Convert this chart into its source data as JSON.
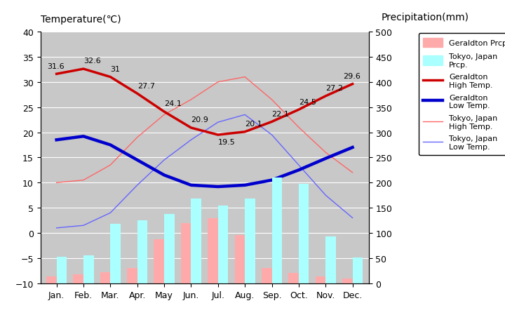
{
  "months": [
    "Jan.",
    "Feb.",
    "Mar.",
    "Apr.",
    "May",
    "Jun.",
    "Jul.",
    "Aug.",
    "Sep.",
    "Oct.",
    "Nov.",
    "Dec."
  ],
  "geraldton_high": [
    31.6,
    32.6,
    31.0,
    27.7,
    24.1,
    20.9,
    19.5,
    20.1,
    22.1,
    24.5,
    27.2,
    29.6
  ],
  "geraldton_low": [
    18.5,
    19.2,
    17.5,
    14.5,
    11.5,
    9.5,
    9.2,
    9.5,
    10.5,
    12.5,
    14.8,
    17.0
  ],
  "tokyo_high": [
    10.0,
    10.5,
    13.5,
    19.0,
    23.5,
    26.5,
    30.0,
    31.0,
    26.5,
    21.0,
    16.0,
    12.0
  ],
  "tokyo_low": [
    1.0,
    1.5,
    4.0,
    9.5,
    14.5,
    18.5,
    22.0,
    23.5,
    19.5,
    13.5,
    7.5,
    3.0
  ],
  "geraldton_prcp_mm": [
    14,
    18,
    22,
    30,
    88,
    120,
    130,
    96,
    30,
    20,
    14,
    10
  ],
  "tokyo_prcp_mm": [
    52,
    56,
    118,
    125,
    138,
    168,
    154,
    168,
    210,
    198,
    93,
    51
  ],
  "geraldton_high_labels": [
    "31.6",
    "32.6",
    "31",
    "27.7",
    "24.1",
    "20.9",
    "19.5",
    "20.1",
    "22.1",
    "24.5",
    "27.2",
    "29.6"
  ],
  "bg_color": "#c8c8c8",
  "geraldton_high_color": "#cc0000",
  "geraldton_low_color": "#0000cc",
  "tokyo_high_color": "#ff6666",
  "tokyo_low_color": "#6666ff",
  "geraldton_prcp_color": "#ffaaaa",
  "tokyo_prcp_color": "#aaffff",
  "temp_ylim": [
    -10,
    40
  ],
  "prcp_ylim": [
    0,
    500
  ],
  "title_left": "Temperature(℃)",
  "title_right": "Precipitation(mm)"
}
